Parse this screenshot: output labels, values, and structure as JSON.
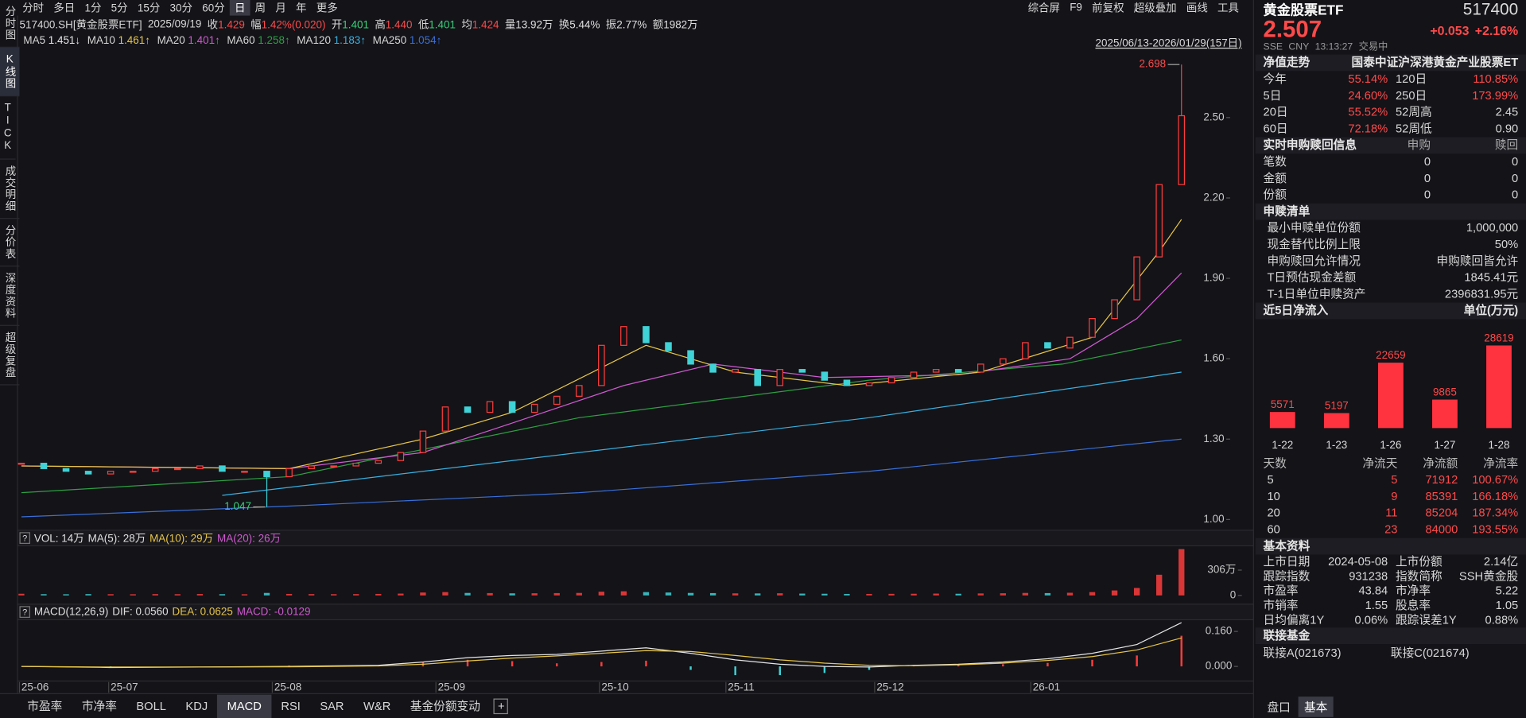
{
  "toolbar": {
    "periods": [
      "分时",
      "多日",
      "1分",
      "5分",
      "15分",
      "30分",
      "60分",
      "日",
      "周",
      "月",
      "年",
      "更多"
    ],
    "active": "日",
    "tools": [
      "综合屏",
      "F9",
      "前复权",
      "超级叠加",
      "画线",
      "工具"
    ]
  },
  "side_tabs": {
    "items": [
      "分时图",
      "K线图",
      "TICK",
      "成交明细",
      "分价表",
      "深度资料",
      "超级复盘"
    ],
    "active": "K线图"
  },
  "info": {
    "code": "517400.SH[黄金股票ETF]",
    "date": "2025/09/19",
    "fields": [
      {
        "label": "收",
        "value": "1.429",
        "color": "#ff4a4a"
      },
      {
        "label": "幅",
        "value": "1.42%(0.020)",
        "color": "#ff4a4a"
      },
      {
        "label": "开",
        "value": "1.401",
        "color": "#3ad07a"
      },
      {
        "label": "高",
        "value": "1.440",
        "color": "#ff4a4a"
      },
      {
        "label": "低",
        "value": "1.401",
        "color": "#3ad07a"
      },
      {
        "label": "均",
        "value": "1.424",
        "color": "#ff4a4a"
      },
      {
        "label": "量",
        "value": "13.92万",
        "color": "#e0e0e0"
      },
      {
        "label": "换",
        "value": "5.44%",
        "color": "#e0e0e0"
      },
      {
        "label": "振",
        "value": "2.77%",
        "color": "#e0e0e0"
      },
      {
        "label": "额",
        "value": "1982万",
        "color": "#e0e0e0"
      }
    ]
  },
  "ma_legend": {
    "items": [
      {
        "label": "MA5",
        "value": "1.451↓",
        "color": "#e6e6e6"
      },
      {
        "label": "MA10",
        "value": "1.461↑",
        "color": "#e8c547"
      },
      {
        "label": "MA20",
        "value": "1.401↑",
        "color": "#d05ad0"
      },
      {
        "label": "MA60",
        "value": "1.258↑",
        "color": "#2ea043"
      },
      {
        "label": "MA120",
        "value": "1.183↑",
        "color": "#3ab0e0"
      },
      {
        "label": "MA250",
        "value": "1.054↑",
        "color": "#3a6fd8"
      }
    ],
    "range": "2025/06/13-2026/01/29(157日)"
  },
  "chart_data": [
    {
      "type": "candlestick",
      "x": [
        0,
        3,
        6,
        9,
        12,
        15,
        18,
        21,
        24,
        27,
        30,
        33,
        36,
        39,
        42,
        45,
        48,
        51,
        54,
        57,
        60,
        63,
        66,
        69,
        72,
        75,
        78,
        81,
        84,
        87,
        90,
        93,
        96,
        99,
        102,
        105,
        108,
        111,
        114,
        117,
        120,
        123,
        126,
        129,
        132,
        135,
        138,
        141,
        144,
        147,
        150,
        153,
        156
      ],
      "close": [
        1.21,
        1.19,
        1.18,
        1.17,
        1.18,
        1.18,
        1.19,
        1.19,
        1.2,
        1.18,
        1.18,
        1.16,
        1.19,
        1.2,
        1.2,
        1.21,
        1.22,
        1.25,
        1.33,
        1.42,
        1.4,
        1.44,
        1.4,
        1.43,
        1.46,
        1.5,
        1.65,
        1.72,
        1.66,
        1.63,
        1.58,
        1.55,
        1.56,
        1.5,
        1.56,
        1.55,
        1.52,
        1.5,
        1.51,
        1.53,
        1.55,
        1.56,
        1.55,
        1.58,
        1.6,
        1.66,
        1.64,
        1.68,
        1.75,
        1.82,
        1.98,
        2.25,
        2.507
      ],
      "xlim": [
        0,
        156
      ],
      "ylim": [
        0.96,
        2.75
      ],
      "yticks": [
        {
          "value": 1,
          "label": "1.00"
        },
        {
          "value": 1.3,
          "label": "1.30"
        },
        {
          "value": 1.6,
          "label": "1.60"
        },
        {
          "value": 1.9,
          "label": "1.90"
        },
        {
          "value": 2.2,
          "label": "2.20"
        },
        {
          "value": 2.5,
          "label": "2.50"
        }
      ],
      "xticks": [
        {
          "value": 0,
          "label": "25-06"
        },
        {
          "value": 12,
          "label": "25-07"
        },
        {
          "value": 34,
          "label": "25-08"
        },
        {
          "value": 56,
          "label": "25-09"
        },
        {
          "value": 78,
          "label": "25-10"
        },
        {
          "value": 95,
          "label": "25-11"
        },
        {
          "value": 115,
          "label": "25-12"
        },
        {
          "value": 136,
          "label": "26-01"
        }
      ],
      "up_color": "#ff3d3d",
      "down_color": "#3fd2d6",
      "lines": [
        {
          "color": "#3a6fd8",
          "x": [
            0,
            36,
            75,
            114,
            156
          ],
          "values": [
            1.01,
            1.05,
            1.1,
            1.18,
            1.3
          ]
        },
        {
          "color": "#3ab0e0",
          "x": [
            27,
            75,
            114,
            156
          ],
          "values": [
            1.09,
            1.25,
            1.38,
            1.55
          ]
        },
        {
          "color": "#2ea043",
          "x": [
            0,
            36,
            75,
            114,
            140,
            156
          ],
          "values": [
            1.1,
            1.16,
            1.38,
            1.52,
            1.58,
            1.67
          ]
        },
        {
          "color": "#d05ad0",
          "x": [
            0,
            36,
            54,
            66,
            81,
            93,
            108,
            126,
            141,
            150,
            156
          ],
          "values": [
            1.2,
            1.19,
            1.25,
            1.36,
            1.5,
            1.58,
            1.53,
            1.54,
            1.6,
            1.75,
            1.92
          ]
        },
        {
          "color": "#e8c547",
          "x": [
            0,
            36,
            54,
            66,
            84,
            96,
            111,
            129,
            144,
            153,
            156
          ],
          "values": [
            1.2,
            1.19,
            1.3,
            1.4,
            1.65,
            1.55,
            1.5,
            1.55,
            1.68,
            2.0,
            2.12
          ]
        }
      ],
      "annotations": [
        {
          "x": 156,
          "value": 2.698,
          "color": "#ff4a4a"
        },
        {
          "x": 33,
          "value": 1.047,
          "color": "#3ad07a"
        }
      ]
    },
    {
      "type": "volume",
      "header": [
        {
          "text": "VOL: 14万",
          "color": "#e0e0e0"
        },
        {
          "text": "MA(5): 28万",
          "color": "#e0e0e0"
        },
        {
          "text": "MA(10): 29万",
          "color": "#e8c547"
        },
        {
          "text": "MA(20): 26万",
          "color": "#d05ad0"
        }
      ],
      "x": [
        0,
        3,
        6,
        9,
        12,
        15,
        18,
        21,
        24,
        27,
        30,
        33,
        36,
        39,
        42,
        45,
        48,
        51,
        54,
        57,
        60,
        63,
        66,
        69,
        72,
        75,
        78,
        81,
        84,
        87,
        90,
        93,
        96,
        99,
        102,
        105,
        108,
        111,
        114,
        117,
        120,
        123,
        126,
        129,
        132,
        135,
        138,
        141,
        144,
        147,
        150,
        153,
        156
      ],
      "values": [
        20,
        15,
        14,
        16,
        15,
        14,
        16,
        15,
        17,
        15,
        14,
        30,
        18,
        16,
        15,
        16,
        18,
        22,
        35,
        40,
        30,
        28,
        25,
        26,
        28,
        30,
        45,
        50,
        40,
        35,
        30,
        28,
        25,
        24,
        26,
        22,
        20,
        18,
        18,
        19,
        20,
        22,
        20,
        24,
        26,
        30,
        28,
        32,
        40,
        60,
        90,
        250,
        560
      ],
      "xlim": [
        0,
        156
      ],
      "ylim": [
        0,
        588
      ],
      "yticks": [
        0,
        {
          "value": 306,
          "label": "306万"
        }
      ],
      "up_color": "#ff3d3d",
      "down_color": "#3fd2d6"
    },
    {
      "type": "macd",
      "header": [
        {
          "text": "MACD(12,26,9)",
          "color": "#e0e0e0"
        },
        {
          "text": "DIF: 0.0560",
          "color": "#e0e0e0"
        },
        {
          "text": "DEA: 0.0625",
          "color": "#e8c547"
        },
        {
          "text": "MACD: -0.0129",
          "color": "#d05ad0"
        }
      ],
      "x": [
        0,
        12,
        24,
        36,
        48,
        54,
        60,
        66,
        72,
        78,
        84,
        90,
        96,
        102,
        108,
        114,
        120,
        126,
        132,
        138,
        144,
        150,
        156
      ],
      "dif": [
        0,
        -0.005,
        -0.003,
        0,
        0.005,
        0.02,
        0.04,
        0.05,
        0.055,
        0.07,
        0.085,
        0.06,
        0.03,
        0.01,
        0,
        -0.003,
        0.005,
        0.01,
        0.02,
        0.035,
        0.06,
        0.1,
        0.2
      ],
      "dea": [
        0,
        -0.003,
        -0.003,
        -0.002,
        0.002,
        0.01,
        0.025,
        0.038,
        0.048,
        0.06,
        0.072,
        0.068,
        0.05,
        0.03,
        0.015,
        0.005,
        0.003,
        0.007,
        0.015,
        0.027,
        0.045,
        0.075,
        0.13
      ],
      "hist": [
        0,
        -0.004,
        0,
        0.004,
        0.006,
        0.02,
        0.03,
        0.024,
        0.014,
        0.02,
        0.026,
        -0.016,
        -0.04,
        -0.04,
        -0.03,
        -0.016,
        0.004,
        0.006,
        0.01,
        0.016,
        0.03,
        0.05,
        0.14
      ],
      "xlim": [
        0,
        156
      ],
      "ylim": [
        -0.067,
        0.2
      ],
      "yticks": [
        {
          "value": 0,
          "label": "0.000"
        },
        {
          "value": 0.16,
          "label": "0.160"
        }
      ],
      "dif_color": "#e6e6e6",
      "dea_color": "#e8c547",
      "up_color": "#ff3d3d",
      "down_color": "#3fd2d6"
    },
    {
      "type": "bar",
      "title": "近5日净流入",
      "unit": "单位(万元)",
      "categories": [
        "1-22",
        "1-23",
        "1-26",
        "1-27",
        "1-28"
      ],
      "values": [
        5571,
        5197,
        22659,
        9865,
        28619
      ],
      "ylim": [
        0,
        30000
      ],
      "color": "#ff3340"
    }
  ],
  "panel": {
    "name": "黄金股票ETF",
    "code": "517400",
    "price": "2.507",
    "change": "+0.053",
    "pct": "+2.16%",
    "meta": [
      "SSE",
      "CNY",
      "13:13:27",
      "交易中"
    ],
    "nav": {
      "title": "净值走势",
      "fund": "国泰中证沪深港黄金产业股票ET",
      "rows": [
        [
          "今年",
          "55.14%",
          "120日",
          "110.85%"
        ],
        [
          "5日",
          "24.60%",
          "250日",
          "173.99%"
        ],
        [
          "20日",
          "55.52%",
          "52周高",
          "2.45"
        ],
        [
          "60日",
          "72.18%",
          "52周低",
          "0.90"
        ]
      ]
    },
    "realtime": {
      "title": "实时申购赎回信息",
      "cols": [
        "申购",
        "赎回"
      ],
      "rows": [
        [
          "笔数",
          "0",
          "0"
        ],
        [
          "金额",
          "0",
          "0"
        ],
        [
          "份额",
          "0",
          "0"
        ]
      ]
    },
    "list": {
      "title": "申赎清单",
      "rows": [
        [
          "最小申赎单位份额",
          "1,000,000"
        ],
        [
          "现金替代比例上限",
          "50%"
        ],
        [
          "申购赎回允许情况",
          "申购赎回皆允许"
        ],
        [
          "T日预估现金差额",
          "1845.41元"
        ],
        [
          "T-1日单位申赎资产",
          "2396831.95元"
        ]
      ]
    },
    "flow": {
      "header": [
        "天数",
        "净流天",
        "净流额",
        "净流率"
      ],
      "rows": [
        [
          "5",
          "5",
          "71912",
          "100.67%"
        ],
        [
          "10",
          "9",
          "85391",
          "166.18%"
        ],
        [
          "20",
          "11",
          "85204",
          "187.34%"
        ],
        [
          "60",
          "23",
          "84000",
          "193.55%"
        ]
      ]
    },
    "basic": {
      "title": "基本资料",
      "rows": [
        [
          "上市日期",
          "2024-05-08",
          "上市份额",
          "2.14亿"
        ],
        [
          "跟踪指数",
          "931238",
          "指数简称",
          "SSH黄金股"
        ],
        [
          "市盈率",
          "43.84",
          "市净率",
          "5.22"
        ],
        [
          "市销率",
          "1.55",
          "股息率",
          "1.05"
        ],
        [
          "日均偏离1Y",
          "0.06%",
          "跟踪误差1Y",
          "0.88%"
        ]
      ]
    },
    "link": {
      "title": "联接基金",
      "items": [
        "联接A(021673)",
        "联接C(021674)"
      ]
    },
    "tabs": [
      "盘口",
      "基本"
    ],
    "active_tab": "基本"
  },
  "bottom_tabs": {
    "items": [
      "市盈率",
      "市净率",
      "BOLL",
      "KDJ",
      "MACD",
      "RSI",
      "SAR",
      "W&R",
      "基金份额变动"
    ],
    "active": "MACD"
  }
}
